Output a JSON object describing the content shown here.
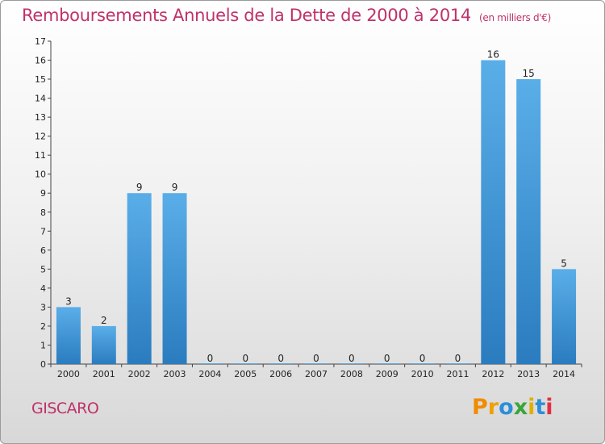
{
  "header": {
    "title": "Remboursements Annuels de la Dette de 2000 à 2014",
    "unit": "(en milliers d'€)"
  },
  "footer": {
    "commune": "GISCARO",
    "logo_text": "Proxiti"
  },
  "colors": {
    "title": "#c0316a",
    "bar_top": "#5aaee8",
    "bar_bottom": "#2a7cbf"
  },
  "chart_data": {
    "type": "bar",
    "title": "Remboursements Annuels de la Dette de 2000 à 2014",
    "subtitle": "(en milliers d'€)",
    "categories": [
      "2000",
      "2001",
      "2002",
      "2003",
      "2004",
      "2005",
      "2006",
      "2007",
      "2008",
      "2009",
      "2010",
      "2011",
      "2012",
      "2013",
      "2014"
    ],
    "values": [
      3,
      2,
      9,
      9,
      0,
      0,
      0,
      0,
      0,
      0,
      0,
      0,
      16,
      15,
      5
    ],
    "yticks": [
      "0",
      "1",
      "2",
      "3",
      "4",
      "5",
      "6",
      "7",
      "8",
      "9",
      "10",
      "11",
      "12",
      "13",
      "14",
      "15",
      "16",
      "17"
    ],
    "ylim": [
      0,
      17
    ],
    "xlabel": "",
    "ylabel": "",
    "grid": false
  }
}
